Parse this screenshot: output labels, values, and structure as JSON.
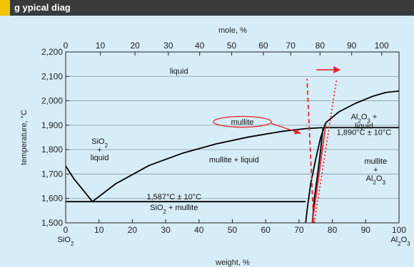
{
  "header": {
    "title": "g                    ypical diag"
  },
  "chart_data": {
    "type": "line",
    "title": "",
    "xlabel": "weight, %",
    "x2label": "mole, %",
    "ylabel": "temperature, °C",
    "xlim": [
      0,
      100
    ],
    "ylim": [
      1500,
      2200
    ],
    "x_ticks": [
      0,
      10,
      20,
      30,
      40,
      50,
      60,
      70,
      80,
      90,
      100
    ],
    "x_tick_labels": [
      "0",
      "10",
      "20",
      "30",
      "40",
      "50",
      "60",
      "70",
      "80",
      "90",
      "100"
    ],
    "y_ticks": [
      1500,
      1600,
      1700,
      1800,
      1900,
      2000,
      2100,
      2200
    ],
    "y_tick_labels": [
      "1,500",
      "1,600",
      "1,700",
      "1,800",
      "1,900",
      "2,000",
      "2,100",
      "2,200"
    ],
    "mole_ticks": [
      0,
      10,
      20,
      30,
      40,
      50,
      60,
      70,
      80,
      90,
      100
    ],
    "mole_tick_labels": [
      "0",
      "10",
      "20",
      "30",
      "40",
      "50",
      "60",
      "70",
      "80",
      "90",
      "100"
    ],
    "mole_tick_weight_positions": [
      0,
      10.4,
      20.8,
      30.8,
      40.2,
      49.8,
      59.3,
      67.5,
      76.3,
      85.8,
      94.8
    ],
    "end_labels": {
      "left": "SiO",
      "right": "Al",
      "left_sub": "2",
      "right_sub": "2",
      "right_sub2": "3"
    },
    "series": [
      {
        "x": [
          0,
          2.5,
          5.5,
          8
        ],
        "y": [
          1733,
          1680,
          1630,
          1587
        ]
      },
      {
        "x": [
          8,
          15,
          25,
          35,
          45,
          55,
          65,
          72,
          77
        ],
        "y": [
          1587,
          1660,
          1735,
          1785,
          1823,
          1852,
          1875,
          1886,
          1890
        ]
      },
      {
        "x": [
          72,
          72.5,
          73.5,
          75,
          76.5,
          78
        ],
        "y": [
          1500,
          1560,
          1660,
          1760,
          1850,
          1910
        ]
      },
      {
        "x": [
          78,
          82,
          87,
          92,
          96,
          100
        ],
        "y": [
          1910,
          1955,
          1990,
          2018,
          2034,
          2040
        ]
      },
      {
        "x": [
          74,
          74.6,
          75.6,
          76.5,
          77.2
        ],
        "y": [
          1500,
          1600,
          1700,
          1800,
          1890
        ]
      },
      {
        "x": [
          0,
          72
        ],
        "y": [
          1587,
          1587
        ]
      },
      {
        "x": [
          77.2,
          100
        ],
        "y": [
          1890,
          1890
        ]
      }
    ],
    "red_lines": [
      {
        "x": [
          74,
          78
        ],
        "y": [
          1500,
          1900
        ],
        "style": "solid"
      },
      {
        "x": [
          74.4,
          72.4
        ],
        "y": [
          1500,
          2090
        ],
        "style": "dashed"
      },
      {
        "x": [
          74.6,
          81.3
        ],
        "y": [
          1500,
          2090
        ],
        "style": "dotted"
      }
    ],
    "red_arrow": {
      "x": [
        75.2,
        82.5
      ],
      "y": [
        2127,
        2127
      ]
    },
    "red_ellipse": {
      "cx": 53,
      "cy": 1914,
      "rx": 8.7,
      "ry": 22
    },
    "red_pointer": {
      "x": [
        61.6,
        70.6
      ],
      "y": [
        1908,
        1866
      ]
    },
    "regions": [
      {
        "label": "liquid",
        "x": 34,
        "y": 2123
      },
      {
        "label": "mullite",
        "x": 53,
        "y": 1914
      },
      {
        "label": "SiO2 + liquid",
        "lines": [
          "SiO",
          "+",
          "liquid"
        ],
        "sub": "2",
        "x": 10.2,
        "y": 1800
      },
      {
        "label": "mullite + liquid",
        "x": 50.5,
        "y": 1760
      },
      {
        "label": "Al2O3 + liquid",
        "x": 89.5,
        "y": 1924
      },
      {
        "label": "mullite + Al2O3",
        "x": 93,
        "y": 1730
      },
      {
        "label": "SiO2 + mullite",
        "x": 32.5,
        "y": 1553
      }
    ],
    "annotations": [
      {
        "text": "1,587°C ± 10°C",
        "x": 32.5,
        "y": 1608
      },
      {
        "text": "1,890°C ± 10°C",
        "x": 89.5,
        "y": 1872
      }
    ],
    "colors": {
      "curve": "#000000",
      "highlight": "#e8232a",
      "background": "#d6ecf7"
    }
  }
}
